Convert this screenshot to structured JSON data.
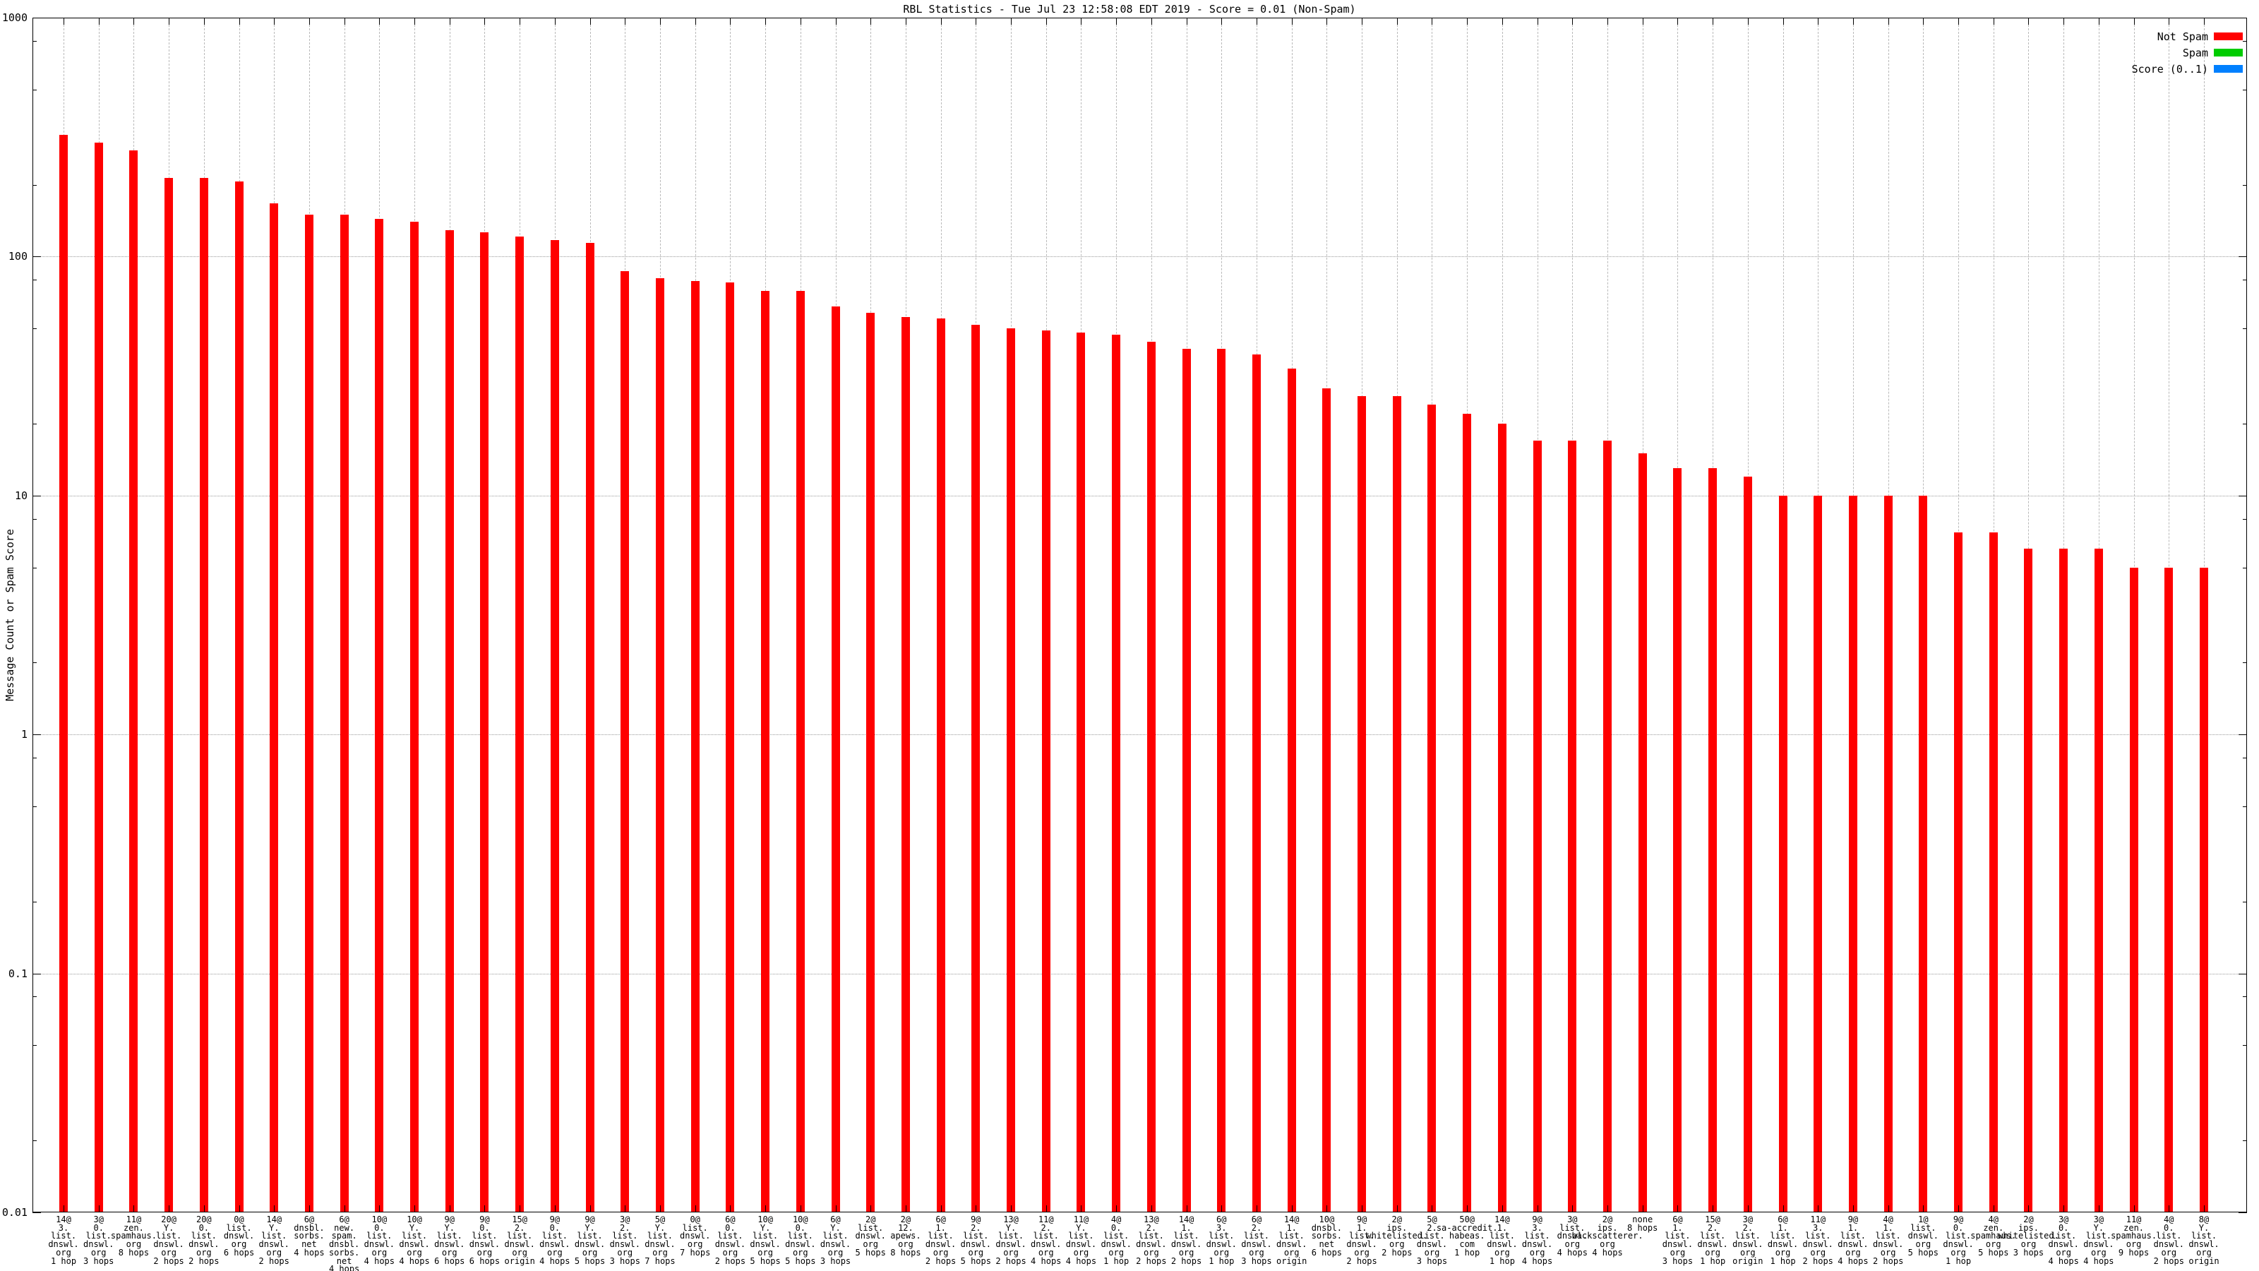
{
  "title": "RBL Statistics - Tue Jul 23 12:58:08 EDT 2019 - Score = 0.01 (Non-Spam)",
  "axes": {
    "ylabel": "Message Count or Spam Score",
    "yticks": [
      {
        "label": "1000",
        "value": 1000
      },
      {
        "label": "100",
        "value": 100
      },
      {
        "label": "10",
        "value": 10
      },
      {
        "label": "1",
        "value": 1
      },
      {
        "label": "0.1",
        "value": 0.1
      },
      {
        "label": "0.01",
        "value": 0.01
      }
    ]
  },
  "legend": {
    "position": "top-right",
    "items": [
      {
        "label": "Not Spam",
        "color": "#ff0000"
      },
      {
        "label": "Spam",
        "color": "#00cc00"
      },
      {
        "label": "Score (0..1)",
        "color": "#0080ff"
      }
    ]
  },
  "chart_data": {
    "type": "bar",
    "yscale": "log",
    "ylim": [
      0.01,
      1000
    ],
    "grid": true,
    "bar_color": "#ff0000",
    "bar_series": "Not Spam",
    "bars": [
      {
        "lines": [
          "14@",
          "3.",
          "list.",
          "dnswl.",
          "org",
          "1 hop"
        ],
        "value": 324
      },
      {
        "lines": [
          "3@",
          "0.",
          "list.",
          "dnswl.",
          "org",
          "3 hops"
        ],
        "value": 299
      },
      {
        "lines": [
          "11@",
          "zen.",
          "spamhaus.",
          "org",
          "8 hops"
        ],
        "value": 278
      },
      {
        "lines": [
          "20@",
          "Y.",
          "list.",
          "dnswl.",
          "org",
          "2 hops"
        ],
        "value": 214
      },
      {
        "lines": [
          "20@",
          "0.",
          "list.",
          "dnswl.",
          "org",
          "2 hops"
        ],
        "value": 214
      },
      {
        "lines": [
          "0@",
          "list.",
          "dnswl.",
          "org",
          "6 hops"
        ],
        "value": 206
      },
      {
        "lines": [
          "14@",
          "Y.",
          "list.",
          "dnswl.",
          "org",
          "2 hops"
        ],
        "value": 167
      },
      {
        "lines": [
          "6@",
          "dnsbl.",
          "sorbs.",
          "net",
          "4 hops"
        ],
        "value": 150
      },
      {
        "lines": [
          "6@",
          "new.",
          "spam.",
          "dnsbl.",
          "sorbs.",
          "net",
          "4 hops"
        ],
        "value": 150
      },
      {
        "lines": [
          "10@",
          "0.",
          "list.",
          "dnswl.",
          "org",
          "4 hops"
        ],
        "value": 144
      },
      {
        "lines": [
          "10@",
          "Y.",
          "list.",
          "dnswl.",
          "org",
          "4 hops"
        ],
        "value": 140
      },
      {
        "lines": [
          "9@",
          "Y.",
          "list.",
          "dnswl.",
          "org",
          "6 hops"
        ],
        "value": 129
      },
      {
        "lines": [
          "9@",
          "0.",
          "list.",
          "dnswl.",
          "org",
          "6 hops"
        ],
        "value": 126
      },
      {
        "lines": [
          "15@",
          "2.",
          "list.",
          "dnswl.",
          "org",
          "origin"
        ],
        "value": 121
      },
      {
        "lines": [
          "9@",
          "0.",
          "list.",
          "dnswl.",
          "org",
          "4 hops"
        ],
        "value": 117
      },
      {
        "lines": [
          "9@",
          "Y.",
          "list.",
          "dnswl.",
          "org",
          "5 hops"
        ],
        "value": 114
      },
      {
        "lines": [
          "3@",
          "2.",
          "list.",
          "dnswl.",
          "org",
          "3 hops"
        ],
        "value": 87
      },
      {
        "lines": [
          "5@",
          "Y.",
          "list.",
          "dnswl.",
          "org",
          "7 hops"
        ],
        "value": 81
      },
      {
        "lines": [
          "0@",
          "list.",
          "dnswl.",
          "org",
          "7 hops"
        ],
        "value": 79
      },
      {
        "lines": [
          "6@",
          "0.",
          "list.",
          "dnswl.",
          "org",
          "2 hops"
        ],
        "value": 78
      },
      {
        "lines": [
          "10@",
          "Y.",
          "list.",
          "dnswl.",
          "org",
          "5 hops"
        ],
        "value": 72
      },
      {
        "lines": [
          "10@",
          "0.",
          "list.",
          "dnswl.",
          "org",
          "5 hops"
        ],
        "value": 72
      },
      {
        "lines": [
          "6@",
          "Y.",
          "list.",
          "dnswl.",
          "org",
          "3 hops"
        ],
        "value": 62
      },
      {
        "lines": [
          "2@",
          "list.",
          "dnswl.",
          "org",
          "5 hops"
        ],
        "value": 58
      },
      {
        "lines": [
          "2@",
          "12.",
          "apews.",
          "org",
          "8 hops"
        ],
        "value": 56
      },
      {
        "lines": [
          "6@",
          "1.",
          "list.",
          "dnswl.",
          "org",
          "2 hops"
        ],
        "value": 55
      },
      {
        "lines": [
          "9@",
          "2.",
          "list.",
          "dnswl.",
          "org",
          "5 hops"
        ],
        "value": 52
      },
      {
        "lines": [
          "13@",
          "Y.",
          "list.",
          "dnswl.",
          "org",
          "2 hops"
        ],
        "value": 50
      },
      {
        "lines": [
          "11@",
          "2.",
          "list.",
          "dnswl.",
          "org",
          "4 hops"
        ],
        "value": 49
      },
      {
        "lines": [
          "11@",
          "Y.",
          "list.",
          "dnswl.",
          "org",
          "4 hops"
        ],
        "value": 48
      },
      {
        "lines": [
          "4@",
          "0.",
          "list.",
          "dnswl.",
          "org",
          "1 hop"
        ],
        "value": 47
      },
      {
        "lines": [
          "13@",
          "2.",
          "list.",
          "dnswl.",
          "org",
          "2 hops"
        ],
        "value": 44
      },
      {
        "lines": [
          "14@",
          "1.",
          "list.",
          "dnswl.",
          "org",
          "2 hops"
        ],
        "value": 41
      },
      {
        "lines": [
          "6@",
          "3.",
          "list.",
          "dnswl.",
          "org",
          "1 hop"
        ],
        "value": 41
      },
      {
        "lines": [
          "6@",
          "2.",
          "list.",
          "dnswl.",
          "org",
          "3 hops"
        ],
        "value": 39
      },
      {
        "lines": [
          "14@",
          "1.",
          "list.",
          "dnswl.",
          "org",
          "origin"
        ],
        "value": 34
      },
      {
        "lines": [
          "10@",
          "dnsbl.",
          "sorbs.",
          "net",
          "6 hops"
        ],
        "value": 28
      },
      {
        "lines": [
          "9@",
          "1.",
          "list.",
          "dnswl.",
          "org",
          "2 hops"
        ],
        "value": 26
      },
      {
        "lines": [
          "2@",
          "ips.",
          "whitelisted.",
          "org",
          "2 hops"
        ],
        "value": 26
      },
      {
        "lines": [
          "5@",
          "2.",
          "list.",
          "dnswl.",
          "org",
          "3 hops"
        ],
        "value": 24
      },
      {
        "lines": [
          "50@",
          "sa-accredit.",
          "habeas.",
          "com",
          "1 hop"
        ],
        "value": 22
      },
      {
        "lines": [
          "14@",
          "1.",
          "list.",
          "dnswl.",
          "org",
          "1 hop"
        ],
        "value": 20
      },
      {
        "lines": [
          "9@",
          "3.",
          "list.",
          "dnswl.",
          "org",
          "4 hops"
        ],
        "value": 17
      },
      {
        "lines": [
          "3@",
          "list.",
          "dnswl.",
          "org",
          "4 hops"
        ],
        "value": 17
      },
      {
        "lines": [
          "2@",
          "ips.",
          "backscatterer.",
          "org",
          "4 hops"
        ],
        "value": 17
      },
      {
        "lines": [
          "none",
          "8 hops"
        ],
        "value": 15
      },
      {
        "lines": [
          "6@",
          "1.",
          "list.",
          "dnswl.",
          "org",
          "3 hops"
        ],
        "value": 13
      },
      {
        "lines": [
          "15@",
          "2.",
          "list.",
          "dnswl.",
          "org",
          "1 hop"
        ],
        "value": 13
      },
      {
        "lines": [
          "3@",
          "2.",
          "list.",
          "dnswl.",
          "org",
          "origin"
        ],
        "value": 12
      },
      {
        "lines": [
          "6@",
          "1.",
          "list.",
          "dnswl.",
          "org",
          "1 hop"
        ],
        "value": 10
      },
      {
        "lines": [
          "11@",
          "3.",
          "list.",
          "dnswl.",
          "org",
          "2 hops"
        ],
        "value": 10
      },
      {
        "lines": [
          "9@",
          "1.",
          "list.",
          "dnswl.",
          "org",
          "4 hops"
        ],
        "value": 10
      },
      {
        "lines": [
          "4@",
          "1.",
          "list.",
          "dnswl.",
          "org",
          "2 hops"
        ],
        "value": 10
      },
      {
        "lines": [
          "1@",
          "list.",
          "dnswl.",
          "org",
          "5 hops"
        ],
        "value": 10
      },
      {
        "lines": [
          "9@",
          "0.",
          "list.",
          "dnswl.",
          "org",
          "1 hop"
        ],
        "value": 7
      },
      {
        "lines": [
          "4@",
          "zen.",
          "spamhaus.",
          "org",
          "5 hops"
        ],
        "value": 7
      },
      {
        "lines": [
          "2@",
          "ips.",
          "whitelisted.",
          "org",
          "3 hops"
        ],
        "value": 6
      },
      {
        "lines": [
          "3@",
          "0.",
          "list.",
          "dnswl.",
          "org",
          "4 hops"
        ],
        "value": 6
      },
      {
        "lines": [
          "3@",
          "Y.",
          "list.",
          "dnswl.",
          "org",
          "4 hops"
        ],
        "value": 6
      },
      {
        "lines": [
          "11@",
          "zen.",
          "spamhaus.",
          "org",
          "9 hops"
        ],
        "value": 5
      },
      {
        "lines": [
          "4@",
          "0.",
          "list.",
          "dnswl.",
          "org",
          "2 hops"
        ],
        "value": 5
      },
      {
        "lines": [
          "8@",
          "Y.",
          "list.",
          "dnswl.",
          "org",
          "origin"
        ],
        "value": 5
      }
    ]
  }
}
